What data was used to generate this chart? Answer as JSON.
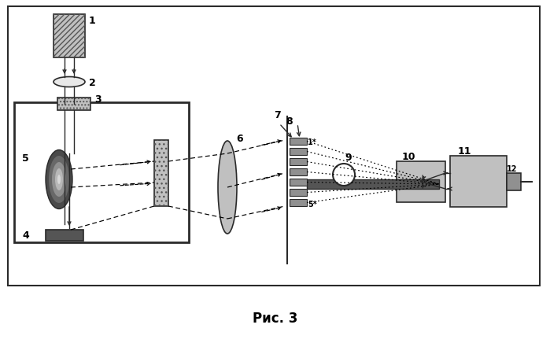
{
  "title": "Рис. 3",
  "bg": "#ffffff",
  "dark": "#2a2a2a",
  "lgray": "#c0c0c0",
  "mgray": "#909090",
  "dgray": "#555555",
  "hatch_gray": "#b0b0b0"
}
